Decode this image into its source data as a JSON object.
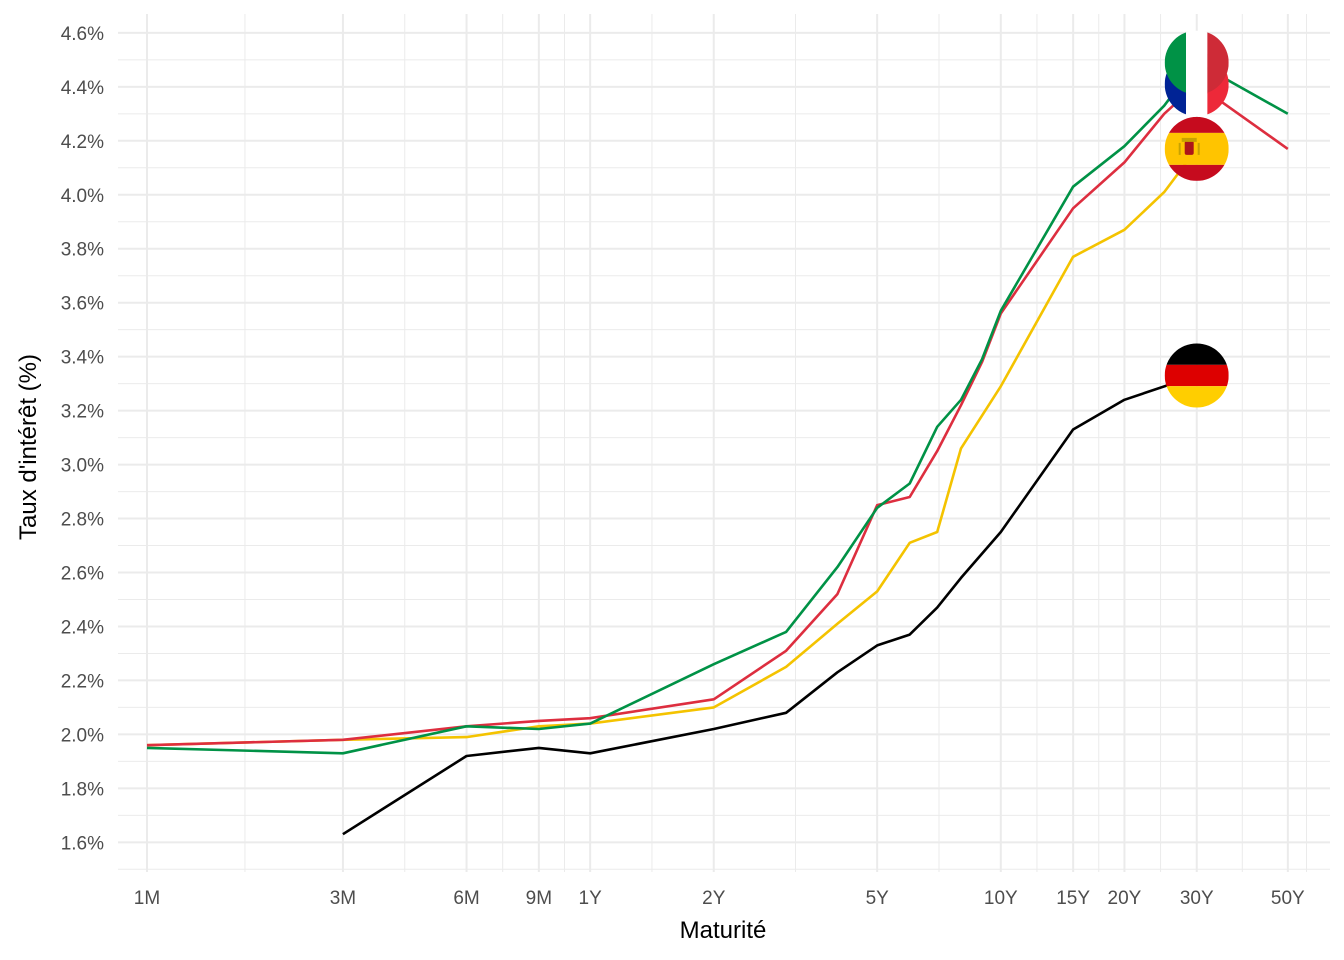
{
  "chart_data": {
    "type": "line",
    "xlabel": "Maturité",
    "ylabel": "Taux d'intérêt (%)",
    "x_scale": "log",
    "x_unit": "months",
    "xlim_months": [
      0.85,
      760
    ],
    "ylim": [
      1.49,
      4.67
    ],
    "grid": true,
    "legend": "none",
    "x_ticks": [
      {
        "months": 1,
        "label": "1M"
      },
      {
        "months": 3,
        "label": "3M"
      },
      {
        "months": 6,
        "label": "6M"
      },
      {
        "months": 9,
        "label": "9M"
      },
      {
        "months": 12,
        "label": "1Y"
      },
      {
        "months": 24,
        "label": "2Y"
      },
      {
        "months": 60,
        "label": "5Y"
      },
      {
        "months": 120,
        "label": "10Y"
      },
      {
        "months": 180,
        "label": "15Y"
      },
      {
        "months": 240,
        "label": "20Y"
      },
      {
        "months": 360,
        "label": "30Y"
      },
      {
        "months": 600,
        "label": "50Y"
      }
    ],
    "y_ticks": [
      {
        "value": 1.6,
        "label": "1.6%"
      },
      {
        "value": 1.8,
        "label": "1.8%"
      },
      {
        "value": 2.0,
        "label": "2.0%"
      },
      {
        "value": 2.2,
        "label": "2.2%"
      },
      {
        "value": 2.4,
        "label": "2.4%"
      },
      {
        "value": 2.6,
        "label": "2.6%"
      },
      {
        "value": 2.8,
        "label": "2.8%"
      },
      {
        "value": 3.0,
        "label": "3.0%"
      },
      {
        "value": 3.2,
        "label": "3.2%"
      },
      {
        "value": 3.4,
        "label": "3.4%"
      },
      {
        "value": 3.6,
        "label": "3.6%"
      },
      {
        "value": 3.8,
        "label": "3.8%"
      },
      {
        "value": 4.0,
        "label": "4.0%"
      },
      {
        "value": 4.2,
        "label": "4.2%"
      },
      {
        "value": 4.4,
        "label": "4.4%"
      },
      {
        "value": 4.6,
        "label": "4.6%"
      }
    ],
    "series": [
      {
        "country": "germany",
        "color": "#000000",
        "icon": "germany-flag-icon",
        "x_months": [
          3,
          6,
          9,
          12,
          24,
          36,
          48,
          60,
          72,
          84,
          96,
          120,
          180,
          240,
          360
        ],
        "y": [
          1.63,
          1.92,
          1.95,
          1.93,
          2.02,
          2.08,
          2.23,
          2.33,
          2.37,
          2.47,
          2.58,
          2.75,
          3.13,
          3.24,
          3.33
        ]
      },
      {
        "country": "spain",
        "color": "#f4c300",
        "icon": "spain-flag-icon",
        "x_months": [
          1,
          3,
          6,
          9,
          12,
          24,
          36,
          48,
          60,
          72,
          84,
          96,
          120,
          180,
          240,
          300,
          360
        ],
        "y": [
          1.96,
          1.98,
          1.99,
          2.03,
          2.04,
          2.1,
          2.25,
          2.41,
          2.53,
          2.71,
          2.75,
          3.06,
          3.29,
          3.77,
          3.87,
          4.01,
          4.17
        ]
      },
      {
        "country": "france",
        "color": "#dd2e3f",
        "icon": "france-flag-icon",
        "x_months": [
          1,
          3,
          6,
          9,
          12,
          24,
          36,
          48,
          60,
          72,
          84,
          96,
          108,
          120,
          180,
          240,
          300,
          360,
          600
        ],
        "y": [
          1.96,
          1.98,
          2.03,
          2.05,
          2.06,
          2.13,
          2.31,
          2.52,
          2.85,
          2.88,
          3.05,
          3.22,
          3.38,
          3.56,
          3.95,
          4.12,
          4.3,
          4.41,
          4.17
        ]
      },
      {
        "country": "italy",
        "color": "#009246",
        "icon": "italy-flag-icon",
        "x_months": [
          1,
          3,
          6,
          9,
          12,
          24,
          36,
          48,
          60,
          72,
          84,
          96,
          108,
          120,
          180,
          240,
          300,
          360,
          600
        ],
        "y": [
          1.95,
          1.93,
          2.03,
          2.02,
          2.04,
          2.26,
          2.38,
          2.62,
          2.84,
          2.93,
          3.14,
          3.24,
          3.39,
          3.57,
          4.03,
          4.18,
          4.33,
          4.49,
          4.3
        ]
      }
    ],
    "flag_order": [
      "germany",
      "spain",
      "france",
      "italy"
    ]
  }
}
